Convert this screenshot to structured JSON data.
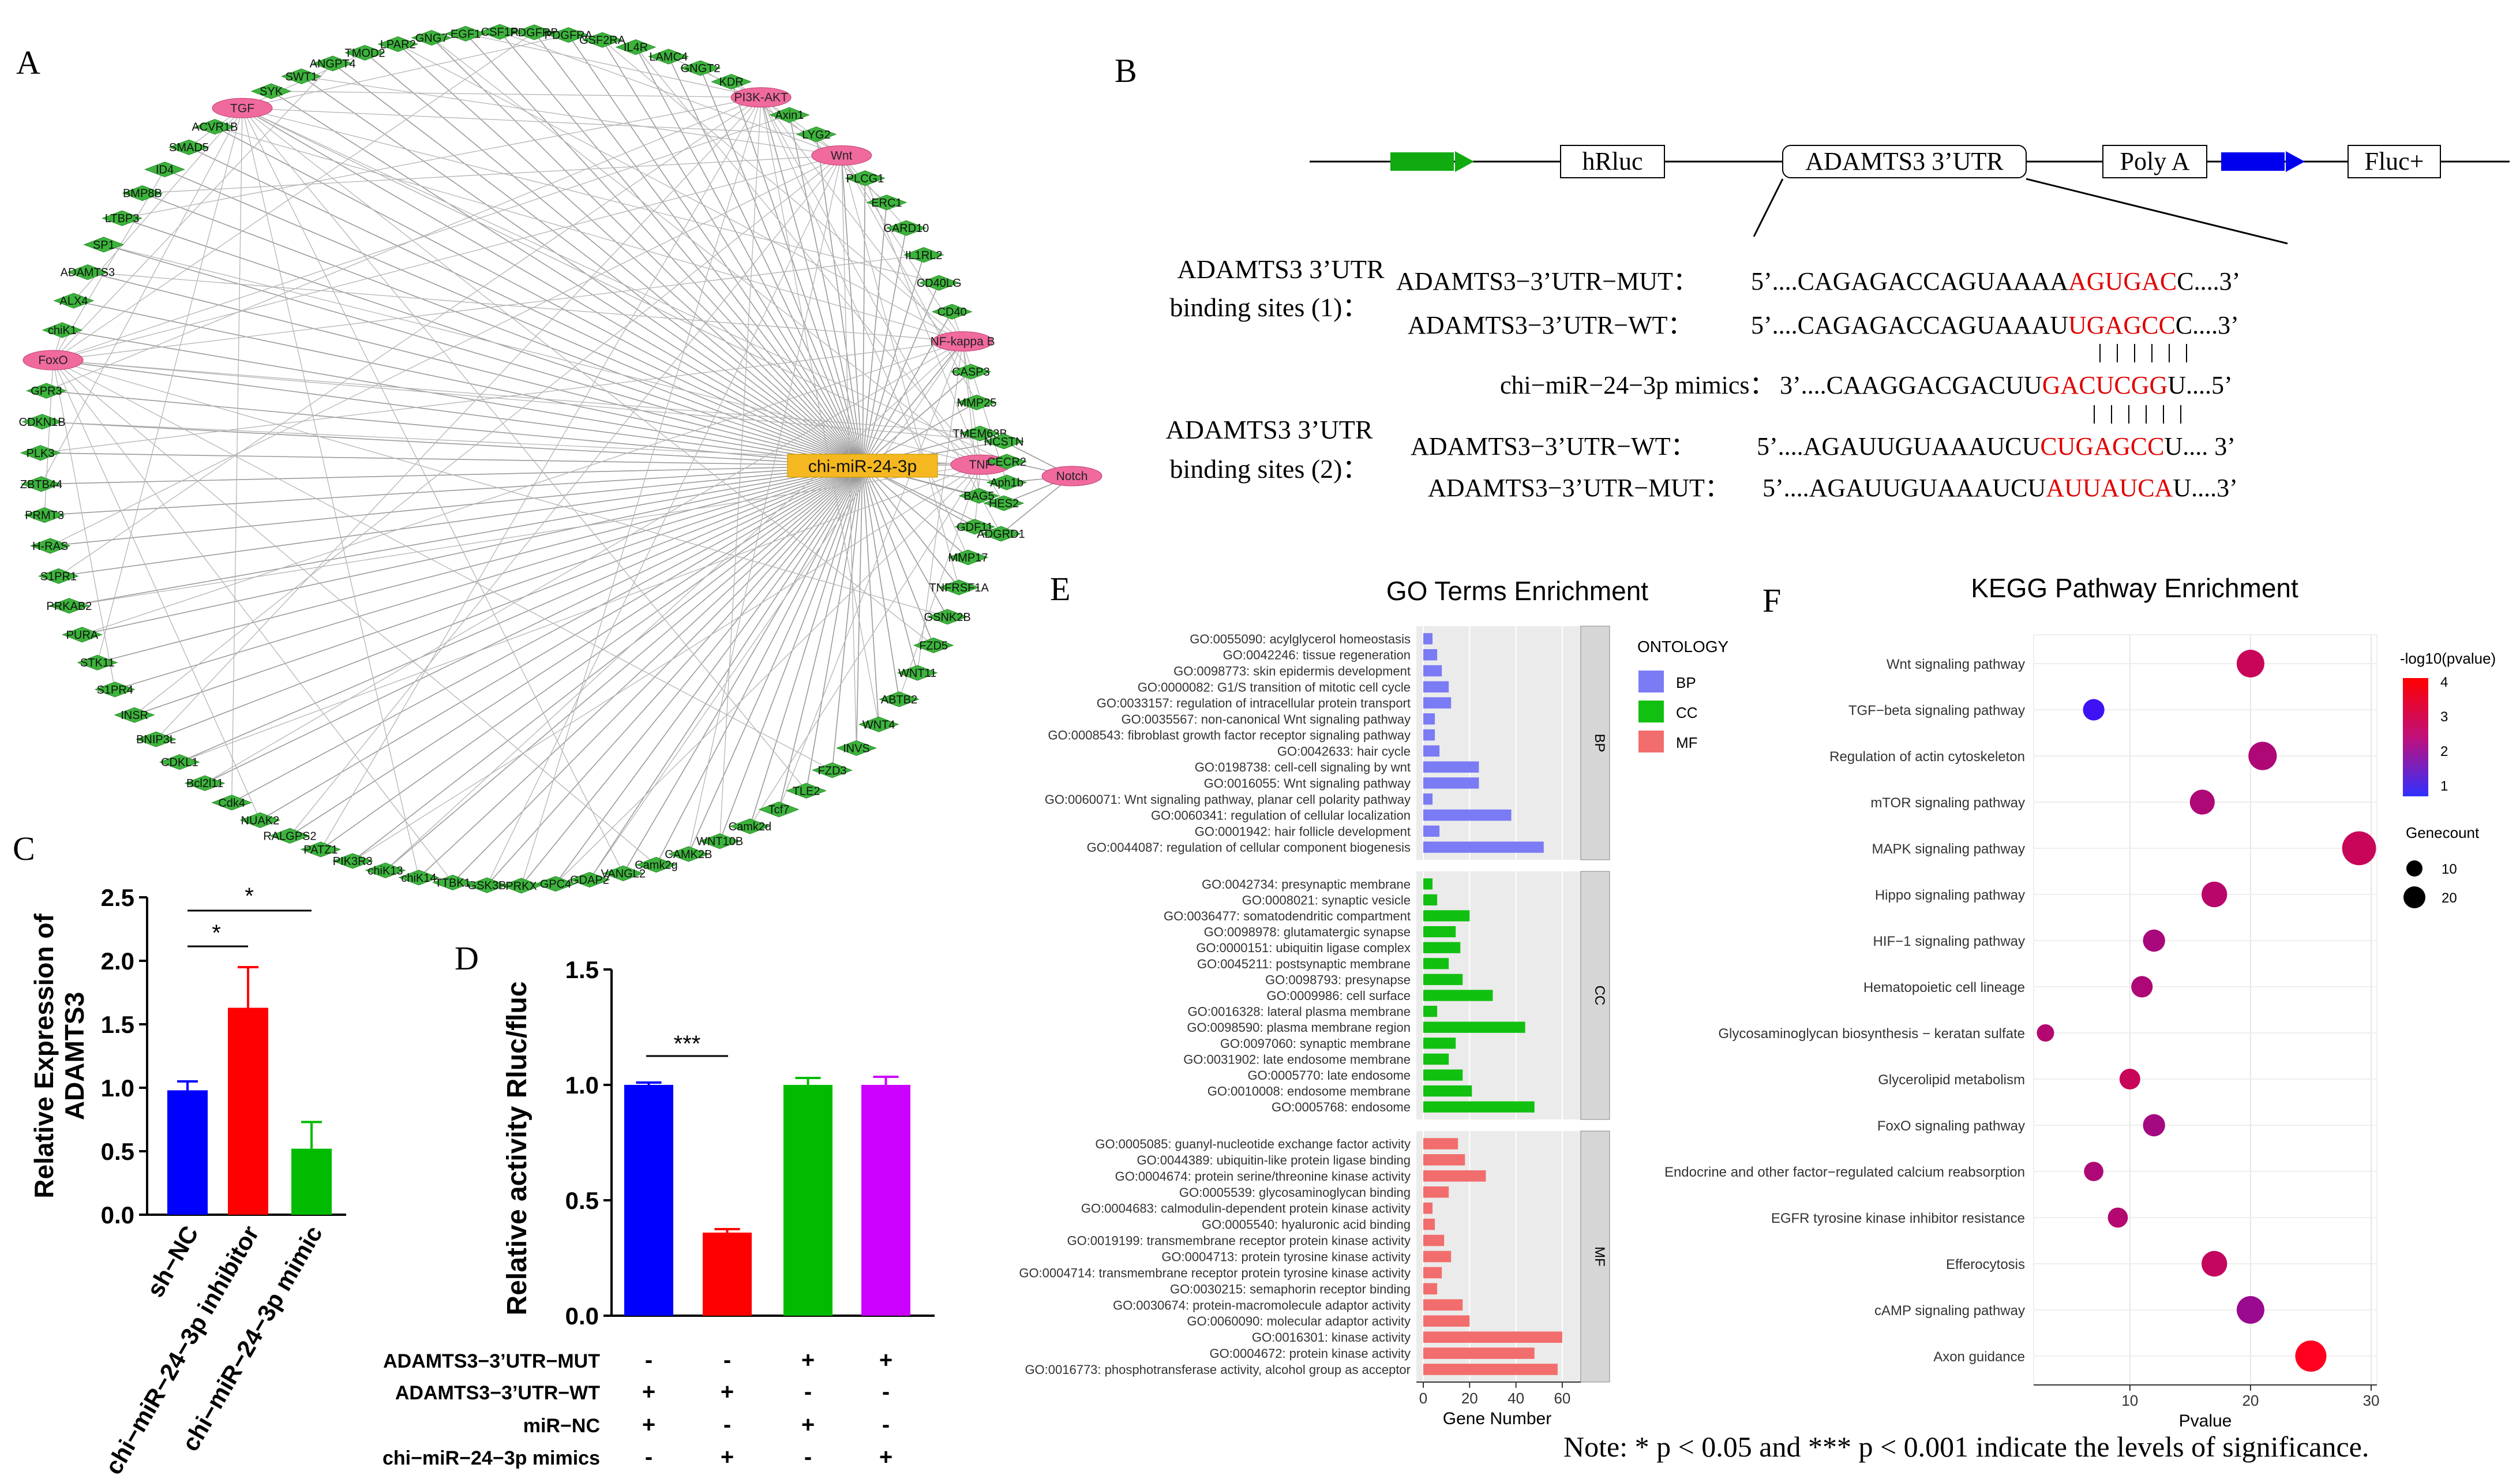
{
  "panels": {
    "A": "A",
    "B": "B",
    "C": "C",
    "D": "D",
    "E": "E",
    "F": "F"
  },
  "network": {
    "center": "chi-miR-24-3p",
    "pathways": [
      "PI3K-AKT",
      "Wnt",
      "NF-kappa B",
      "TNF",
      "Notch",
      "FoxO",
      "TGF"
    ],
    "genes_ring": [
      "KDR",
      "PI3K-AKT",
      "Axin1",
      "LYG2",
      "Wnt",
      "PLCG1",
      "ERC1",
      "CARD10",
      "IL1RL2",
      "CD40LG",
      "CD40",
      "NF-kappa B",
      "CASP3",
      "MMP25",
      "TMEM63B",
      "TNF",
      "BAG5",
      "GDF11",
      "MMP17",
      "TNFRSF1A",
      "GSNK2B",
      "FZD5",
      "WNT11",
      "ABTB2",
      "WNT4",
      "INVS",
      "FZD3",
      "TLE2",
      "Tcf7",
      "Camk2d",
      "WNT10B",
      "CAMK2B",
      "Camk2g",
      "VANGL2",
      "GDAP2",
      "GPC4",
      "PRKX",
      "GSK3B",
      "TTBK1",
      "chiK14",
      "chiK13",
      "PIK3R3",
      "PATZ1",
      "RALGPS2",
      "NUAK2",
      "Cdk4",
      "Bcl2l11",
      "CDKL1",
      "BNIP3L",
      "INSR",
      "S1PR4",
      "STK11",
      "PURA",
      "PRKAB2",
      "S1PR1",
      "H-RAS",
      "PRMT3",
      "ZBTB44",
      "PLK3",
      "CDKN1B",
      "GPR3",
      "FoxO",
      "chiK1",
      "ALX4",
      "ADAMTS3",
      "SP1",
      "LTBP3",
      "BMP8B",
      "ID4",
      "SMAD5",
      "ACVR1B",
      "TGF",
      "SYK",
      "SWT1",
      "ANGPT4",
      "TMOD2",
      "LPAR2",
      "GNG7",
      "EGF1",
      "CSF1R",
      "PDGFRB",
      "PDGFRA",
      "GSF2RA",
      "IL4R",
      "LAMC4",
      "GNGT2"
    ],
    "notch_cluster": [
      "NCSTN",
      "CECR2",
      "Aph1b",
      "HES2",
      "ADGRD1"
    ]
  },
  "construct": {
    "elements": [
      "hRluc",
      "ADAMTS3 3’UTR",
      "Poly A",
      "Fluc+"
    ],
    "site1_label": [
      "ADAMTS3 3’UTR",
      "binding sites (1)："
    ],
    "site2_label": [
      "ADAMTS3 3’UTR",
      "binding sites (2)："
    ],
    "rows": [
      {
        "name": "ADAMTS3−3’UTR−MUT：",
        "pre": "5’....CAGAGACCAGUAAAA",
        "hl": "AGUGAC",
        "post": "C....3’"
      },
      {
        "name": "ADAMTS3−3’UTR−WT：",
        "pre": "5’....CAGAGACCAGUAAAU",
        "hl": "UGAGCC",
        "post": "C....3’"
      },
      {
        "name": "chi−miR−24−3p mimics：",
        "pre": "3’....CAAGGACGACUU",
        "hl": "GACUCGG",
        "post": "U....5’"
      },
      {
        "name": "ADAMTS3−3’UTR−WT：",
        "pre": "5’....AGAUUGUAAAUCU",
        "hl": "CUGAGCC",
        "post": "U.... 3’"
      },
      {
        "name": "ADAMTS3−3’UTR−MUT：",
        "pre": "5’....AGAUUGUAAAUCU",
        "hl": "AUUAUCA",
        "post": "U....3’"
      }
    ]
  },
  "chart_data": [
    {
      "id": "C",
      "type": "bar",
      "ylabel": "Relative Expression of ADAMTS3",
      "ylabel_lines": [
        "Relative Expression of",
        "ADAMTS3"
      ],
      "ylim": [
        0,
        2.5
      ],
      "yticks": [
        "0.0",
        "0.5",
        "1.0",
        "1.5",
        "2.0",
        "2.5"
      ],
      "categories": [
        "sh−NC",
        "chi−miR−24−3p inhibitor",
        "chi−miR−24−3p mimic"
      ],
      "values": [
        0.98,
        1.63,
        0.52
      ],
      "errors": [
        0.07,
        0.32,
        0.21
      ],
      "colors": [
        "#0000ff",
        "#ff0000",
        "#00bb00"
      ],
      "significance": [
        "*",
        "*"
      ]
    },
    {
      "id": "D",
      "type": "bar",
      "ylabel": "Relative activity Rluc/fluc",
      "ylim": [
        0,
        1.5
      ],
      "yticks": [
        "0.0",
        "0.5",
        "1.0",
        "1.5"
      ],
      "values": [
        1.0,
        0.36,
        1.0,
        1.0
      ],
      "errors": [
        0.01,
        0.015,
        0.03,
        0.035
      ],
      "colors": [
        "#0000ff",
        "#ff0000",
        "#00bb00",
        "#cc00ff"
      ],
      "significance": "***",
      "conditions": [
        {
          "name": "ADAMTS3−3’UTR−MUT",
          "signs": [
            "-",
            "-",
            "+",
            "+"
          ]
        },
        {
          "name": "ADAMTS3−3’UTR−WT",
          "signs": [
            "+",
            "+",
            "-",
            "-"
          ]
        },
        {
          "name": "miR−NC",
          "signs": [
            "+",
            "-",
            "+",
            "-"
          ]
        },
        {
          "name": "chi−miR−24−3p mimics",
          "signs": [
            "-",
            "+",
            "-",
            "+"
          ]
        }
      ]
    },
    {
      "id": "E",
      "type": "bar",
      "orientation": "horizontal",
      "title": "GO Terms Enrichment",
      "xlabel": "Gene Number",
      "xlim": [
        0,
        65
      ],
      "xticks": [
        "0",
        "20",
        "40",
        "60"
      ],
      "legend_title": "ONTOLOGY",
      "groups": [
        {
          "name": "BP",
          "color": "#7b7bf5",
          "terms": [
            [
              "GO:0055090: acylglycerol homeostasis",
              4
            ],
            [
              "GO:0042246: tissue regeneration",
              6
            ],
            [
              "GO:0098773: skin epidermis development",
              8
            ],
            [
              "GO:0000082: G1/S transition of mitotic cell cycle",
              11
            ],
            [
              "GO:0033157: regulation of intracellular protein transport",
              12
            ],
            [
              "GO:0035567: non-canonical Wnt signaling pathway",
              5
            ],
            [
              "GO:0008543: fibroblast growth factor receptor signaling pathway",
              5
            ],
            [
              "GO:0042633: hair cycle",
              7
            ],
            [
              "GO:0198738: cell-cell signaling by wnt",
              24
            ],
            [
              "GO:0016055: Wnt signaling pathway",
              24
            ],
            [
              "GO:0060071: Wnt signaling pathway, planar cell polarity pathway",
              4
            ],
            [
              "GO:0060341: regulation of cellular localization",
              38
            ],
            [
              "GO:0001942: hair follicle development",
              7
            ],
            [
              "GO:0044087: regulation of cellular component biogenesis",
              52
            ]
          ]
        },
        {
          "name": "CC",
          "color": "#11c011",
          "terms": [
            [
              "GO:0042734: presynaptic membrane",
              4
            ],
            [
              "GO:0008021: synaptic vesicle",
              6
            ],
            [
              "GO:0036477: somatodendritic compartment",
              20
            ],
            [
              "GO:0098978: glutamatergic synapse",
              14
            ],
            [
              "GO:0000151: ubiquitin ligase complex",
              16
            ],
            [
              "GO:0045211: postsynaptic membrane",
              11
            ],
            [
              "GO:0098793: presynapse",
              17
            ],
            [
              "GO:0009986: cell surface",
              30
            ],
            [
              "GO:0016328: lateral plasma membrane",
              6
            ],
            [
              "GO:0098590: plasma membrane region",
              44
            ],
            [
              "GO:0097060: synaptic membrane",
              14
            ],
            [
              "GO:0031902: late endosome membrane",
              11
            ],
            [
              "GO:0005770: late endosome",
              17
            ],
            [
              "GO:0010008: endosome membrane",
              21
            ],
            [
              "GO:0005768: endosome",
              48
            ]
          ]
        },
        {
          "name": "MF",
          "color": "#f26d6d",
          "terms": [
            [
              "GO:0005085: guanyl-nucleotide exchange factor activity",
              15
            ],
            [
              "GO:0044389: ubiquitin-like protein ligase binding",
              18
            ],
            [
              "GO:0004674: protein serine/threonine kinase activity",
              27
            ],
            [
              "GO:0005539: glycosaminoglycan binding",
              11
            ],
            [
              "GO:0004683: calmodulin-dependent protein kinase activity",
              4
            ],
            [
              "GO:0005540: hyaluronic acid binding",
              5
            ],
            [
              "GO:0019199: transmembrane receptor protein kinase activity",
              9
            ],
            [
              "GO:0004713: protein tyrosine kinase activity",
              12
            ],
            [
              "GO:0004714: transmembrane receptor protein tyrosine kinase activity",
              8
            ],
            [
              "GO:0030215: semaphorin receptor binding",
              6
            ],
            [
              "GO:0030674: protein-macromolecule adaptor activity",
              17
            ],
            [
              "GO:0060090: molecular adaptor activity",
              20
            ],
            [
              "GO:0016301: kinase activity",
              60
            ],
            [
              "GO:0004672: protein kinase activity",
              48
            ],
            [
              "GO:0016773: phosphotransferase activity, alcohol group as acceptor",
              58
            ]
          ]
        }
      ]
    },
    {
      "id": "F",
      "type": "scatter",
      "title": "KEGG Pathway Enrichment",
      "xlabel": "Pvalue",
      "xlim": [
        2.5,
        30
      ],
      "xticks": [
        "10",
        "20",
        "30"
      ],
      "legend_color_title": "-log10(pvalue)",
      "color_ticks": [
        "4",
        "3",
        "2",
        "1"
      ],
      "legend_size_title": "Genecount",
      "size_ticks": [
        "10",
        "20"
      ],
      "points": [
        {
          "name": "Wnt signaling pathway",
          "x": 20,
          "logp": 3.0,
          "count": 20
        },
        {
          "name": "TGF−beta signaling pathway",
          "x": 7,
          "logp": 0.4,
          "count": 11
        },
        {
          "name": "Regulation of actin cytoskeleton",
          "x": 21,
          "logp": 2.5,
          "count": 21
        },
        {
          "name": "mTOR signaling pathway",
          "x": 16,
          "logp": 2.5,
          "count": 16
        },
        {
          "name": "MAPK signaling pathway",
          "x": 29,
          "logp": 3.0,
          "count": 29
        },
        {
          "name": "Hippo signaling pathway",
          "x": 17,
          "logp": 2.7,
          "count": 17
        },
        {
          "name": "HIF−1 signaling pathway",
          "x": 12,
          "logp": 2.4,
          "count": 12
        },
        {
          "name": "Hematopoietic cell lineage",
          "x": 11,
          "logp": 2.5,
          "count": 11
        },
        {
          "name": "Glycosaminoglycan biosynthesis − keratan sulfate",
          "x": 3,
          "logp": 2.6,
          "count": 5
        },
        {
          "name": "Glycerolipid metabolism",
          "x": 10,
          "logp": 3.0,
          "count": 10
        },
        {
          "name": "FoxO signaling pathway",
          "x": 12,
          "logp": 2.3,
          "count": 12
        },
        {
          "name": "Endocrine and other factor−regulated calcium reabsorption",
          "x": 7,
          "logp": 2.5,
          "count": 8
        },
        {
          "name": "EGFR tyrosine kinase inhibitor resistance",
          "x": 9,
          "logp": 2.6,
          "count": 9
        },
        {
          "name": "Efferocytosis",
          "x": 17,
          "logp": 2.9,
          "count": 17
        },
        {
          "name": "cAMP signaling pathway",
          "x": 20,
          "logp": 2.1,
          "count": 20
        },
        {
          "name": "Axon guidance",
          "x": 25,
          "logp": 4.0,
          "count": 25
        }
      ]
    }
  ],
  "note": "Note: * p < 0.05 and *** p < 0.001 indicate the levels of significance."
}
